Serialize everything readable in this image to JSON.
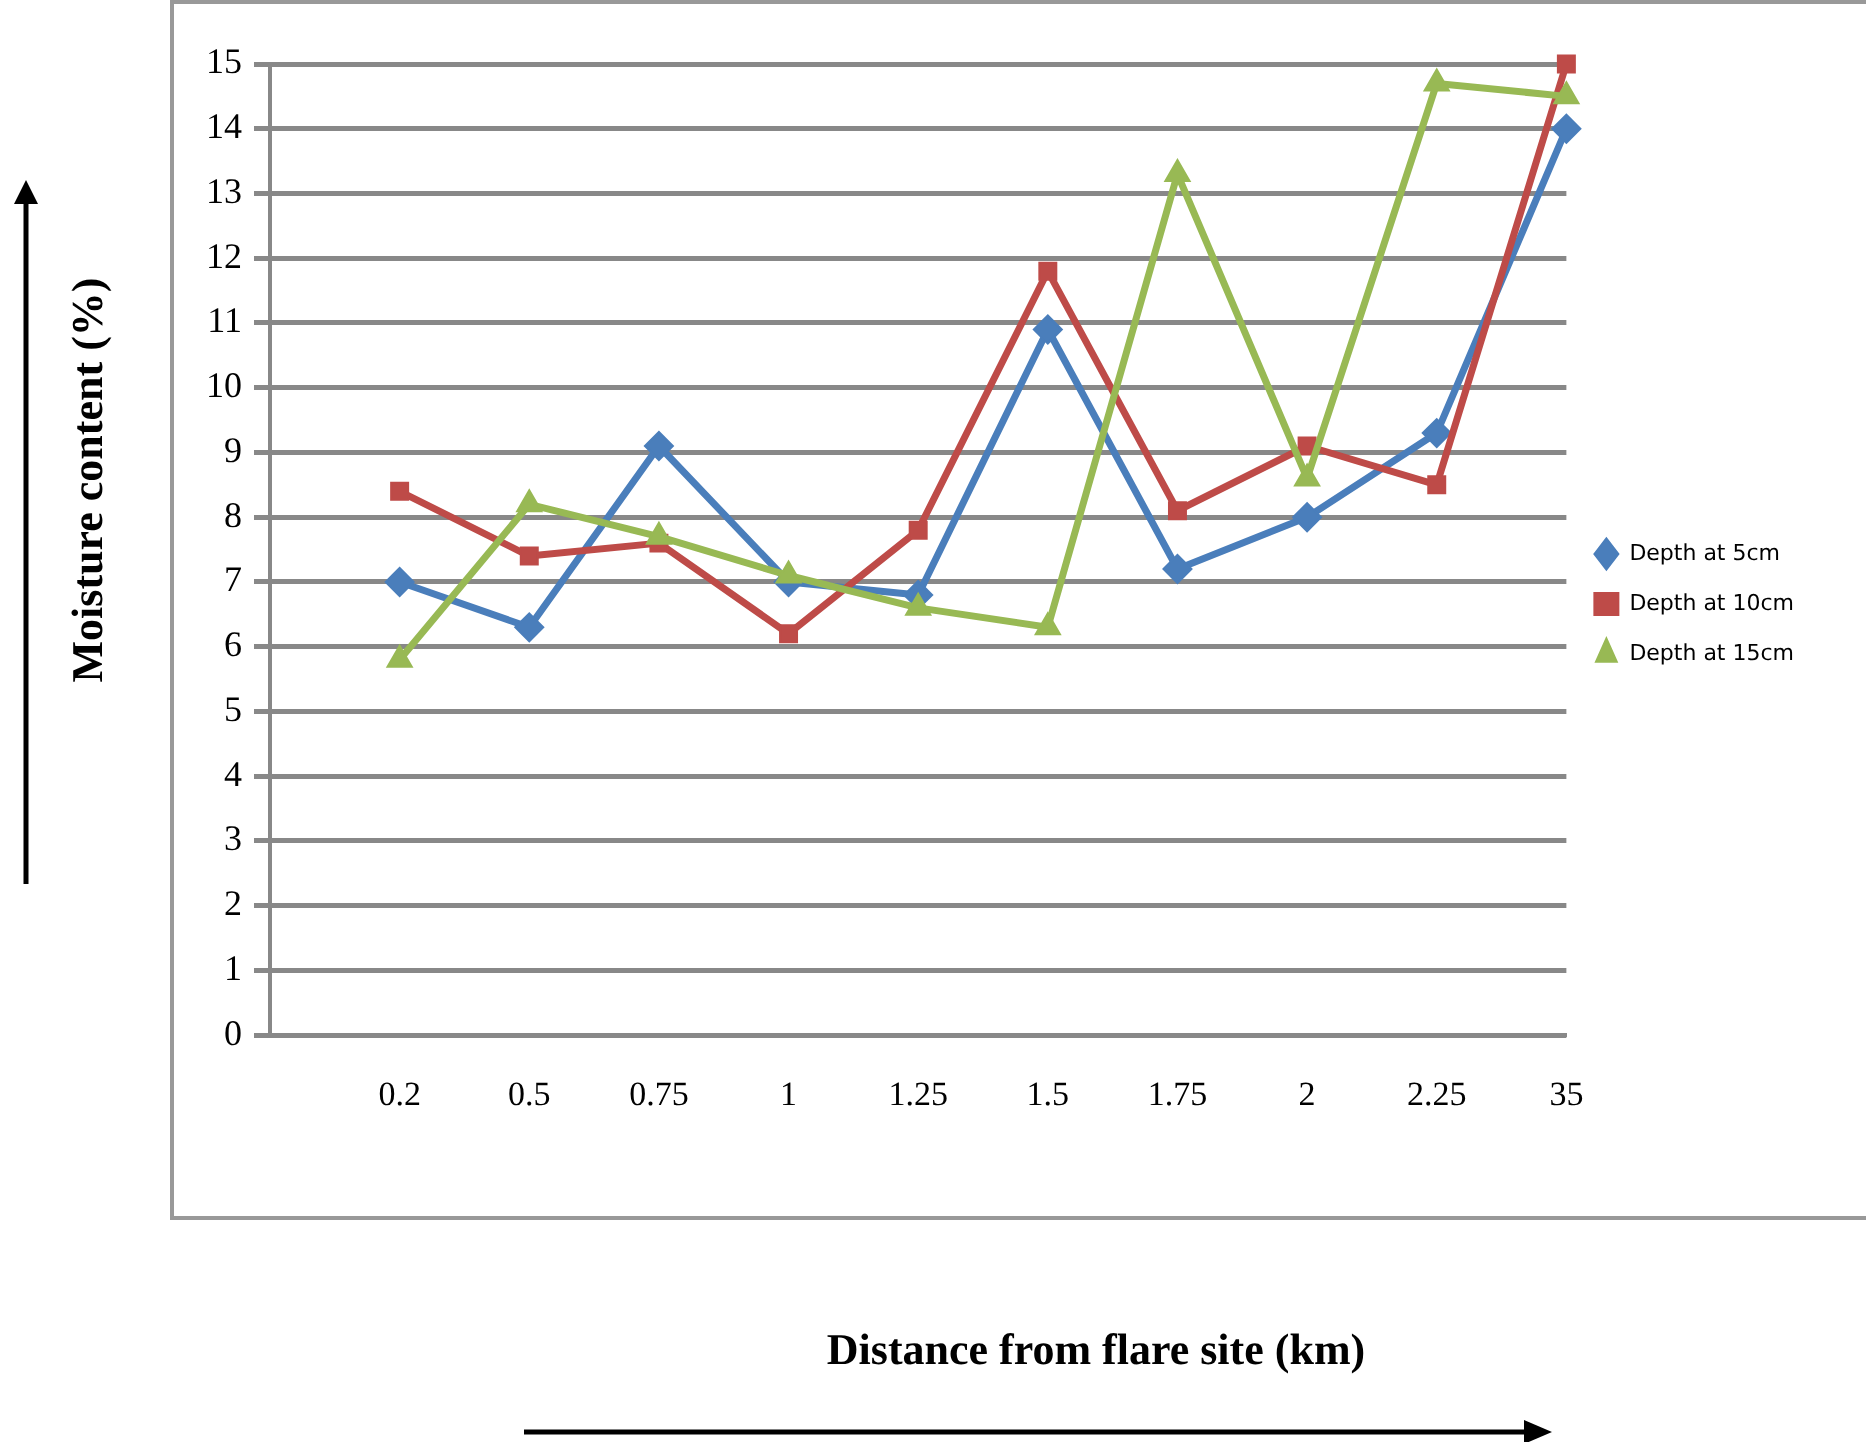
{
  "chart_data": {
    "type": "line",
    "xlabel": "Distance from flare site (km)",
    "ylabel": "Moisture content (%)",
    "categories": [
      null,
      "0.2",
      "0.5",
      "0.75",
      "1",
      "1.25",
      "1.5",
      "1.75",
      "2",
      "2.25",
      "35"
    ],
    "series": [
      {
        "name": "Depth at 5cm",
        "color": "#4a7ebb",
        "marker": "diamond",
        "values": [
          null,
          7.0,
          6.3,
          9.1,
          7.0,
          6.8,
          10.9,
          7.2,
          8.0,
          9.3,
          14.0
        ]
      },
      {
        "name": "Depth at 10cm",
        "color": "#be4b48",
        "marker": "square",
        "values": [
          null,
          8.4,
          7.4,
          7.6,
          6.2,
          7.8,
          11.8,
          8.1,
          9.1,
          8.5,
          15
        ]
      },
      {
        "name": "Depth at 15cm",
        "color": "#98b954",
        "marker": "triangle",
        "values": [
          null,
          5.8,
          8.2,
          7.7,
          7.1,
          6.6,
          6.3,
          13.3,
          8.6,
          14.7,
          14.5
        ]
      }
    ],
    "ylim": [
      0,
      15
    ],
    "yticks": [
      0,
      1,
      2,
      3,
      4,
      5,
      6,
      7,
      8,
      9,
      10,
      11,
      12,
      13,
      14,
      15
    ],
    "grid": "y",
    "legend": "right"
  }
}
